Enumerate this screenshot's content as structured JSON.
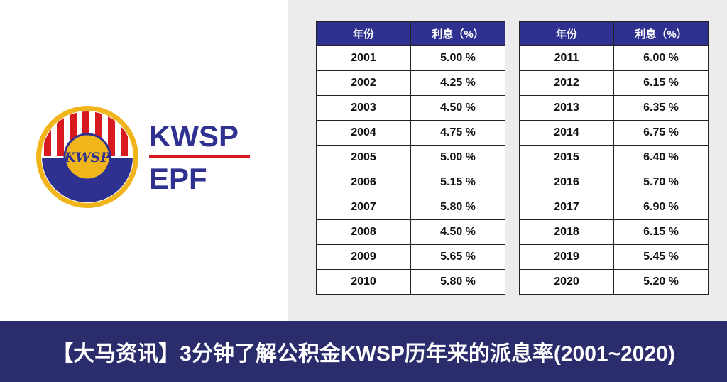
{
  "logo": {
    "emblem": "KWSP",
    "line1": "KWSP",
    "line2": "EPF"
  },
  "tables": [
    {
      "header": [
        "年份",
        "利息（%）"
      ],
      "rows": [
        [
          "2001",
          "5.00 %"
        ],
        [
          "2002",
          "4.25 %"
        ],
        [
          "2003",
          "4.50 %"
        ],
        [
          "2004",
          "4.75 %"
        ],
        [
          "2005",
          "5.00 %"
        ],
        [
          "2006",
          "5.15 %"
        ],
        [
          "2007",
          "5.80 %"
        ],
        [
          "2008",
          "4.50 %"
        ],
        [
          "2009",
          "5.65 %"
        ],
        [
          "2010",
          "5.80 %"
        ]
      ]
    },
    {
      "header": [
        "年份",
        "利息（%）"
      ],
      "rows": [
        [
          "2011",
          "6.00 %"
        ],
        [
          "2012",
          "6.15 %"
        ],
        [
          "2013",
          "6.35 %"
        ],
        [
          "2014",
          "6.75 %"
        ],
        [
          "2015",
          "6.40 %"
        ],
        [
          "2016",
          "5.70 %"
        ],
        [
          "2017",
          "6.90 %"
        ],
        [
          "2018",
          "6.15 %"
        ],
        [
          "2019",
          "5.45 %"
        ],
        [
          "2020",
          "5.20 %"
        ]
      ]
    }
  ],
  "banner": "【大马资讯】3分钟了解公积金KWSP历年来的派息率(2001~2020)"
}
